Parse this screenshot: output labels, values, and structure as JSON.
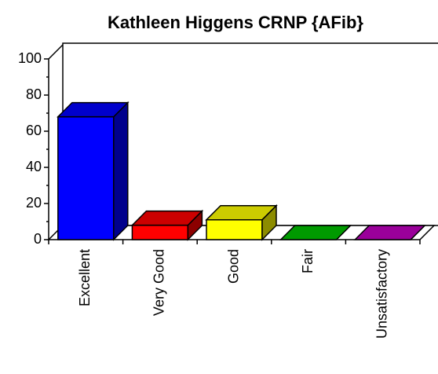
{
  "chart_data": {
    "type": "bar3d",
    "title": "Kathleen Higgens CRNP {AFib}",
    "categories": [
      "Excellent",
      "Very Good",
      "Good",
      "Fair",
      "Unsatisfactory"
    ],
    "values": [
      68,
      8,
      11,
      0,
      0
    ],
    "colors": [
      "#0000ff",
      "#ff0000",
      "#ffff00",
      "#00c000",
      "#c000c0"
    ],
    "ylim": [
      0,
      100
    ],
    "yticks": [
      0,
      20,
      40,
      60,
      80,
      100
    ]
  }
}
